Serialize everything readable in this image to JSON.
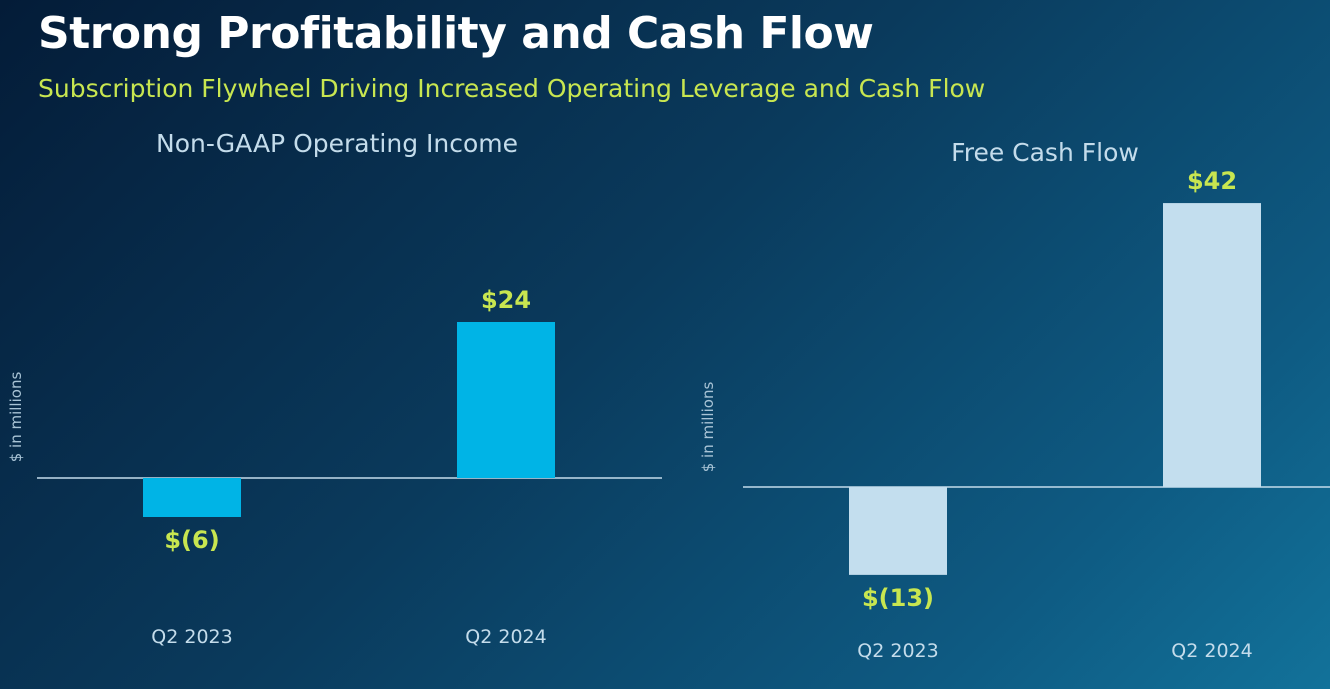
{
  "title": "Strong Profitability and Cash Flow",
  "subtitle": "Subscription Flywheel Driving Increased Operating Leverage and Cash Flow",
  "chart_data": [
    {
      "type": "bar",
      "title": "Non-GAAP Operating Income",
      "ylabel": "$ in millions",
      "xlabel": "",
      "categories": [
        "Q2 2023",
        "Q2 2024"
      ],
      "values": [
        -6,
        24
      ],
      "data_labels": [
        "$(6)",
        "$24"
      ],
      "bar_color": "#00b4e6"
    },
    {
      "type": "bar",
      "title": "Free Cash Flow",
      "ylabel": "$ in millions",
      "xlabel": "",
      "categories": [
        "Q2 2023",
        "Q2 2024"
      ],
      "values": [
        -13,
        42
      ],
      "data_labels": [
        "$(13)",
        "$42"
      ],
      "bar_color": "#c3deee"
    }
  ],
  "colors": {
    "title": "#ffffff",
    "subtitle": "#c8e650",
    "data_label": "#c8e650"
  }
}
